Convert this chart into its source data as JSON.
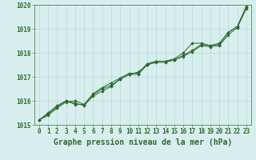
{
  "title": "Graphe pression niveau de la mer (hPa)",
  "xlabel_hours": [
    0,
    1,
    2,
    3,
    4,
    5,
    6,
    7,
    8,
    9,
    10,
    11,
    12,
    13,
    14,
    15,
    16,
    17,
    18,
    19,
    20,
    21,
    22,
    23
  ],
  "series1": [
    1015.2,
    1015.5,
    1015.8,
    1016.0,
    1015.9,
    1015.8,
    1016.2,
    1016.4,
    1016.6,
    1016.9,
    1017.1,
    1017.1,
    1017.5,
    1017.6,
    1017.6,
    1017.7,
    1017.9,
    1018.1,
    1018.35,
    1018.3,
    1018.4,
    1018.85,
    1019.1,
    1019.9
  ],
  "series2": [
    1015.2,
    1015.4,
    1015.7,
    1015.95,
    1016.0,
    1015.85,
    1016.3,
    1016.55,
    1016.75,
    1016.95,
    1017.15,
    1017.15,
    1017.55,
    1017.65,
    1017.65,
    1017.7,
    1017.85,
    1018.05,
    1018.3,
    1018.25,
    1018.3,
    1018.75,
    1019.05,
    1019.85
  ],
  "series3": [
    1015.2,
    1015.45,
    1015.75,
    1016.0,
    1015.85,
    1015.85,
    1016.25,
    1016.5,
    1016.65,
    1016.9,
    1017.1,
    1017.2,
    1017.5,
    1017.65,
    1017.65,
    1017.75,
    1018.0,
    1018.4,
    1018.4,
    1018.3,
    1018.35,
    1018.85,
    1019.1,
    1019.95
  ],
  "line_color": "#2d6a2d",
  "marker_color": "#2d6a2d",
  "bg_color": "#d8eeee",
  "grid_color": "#b8d8d8",
  "label_color": "#2d6a2d",
  "ylim": [
    1015.0,
    1020.0
  ],
  "yticks": [
    1015,
    1016,
    1017,
    1018,
    1019,
    1020
  ],
  "title_fontsize": 7,
  "tick_fontsize": 5.5
}
